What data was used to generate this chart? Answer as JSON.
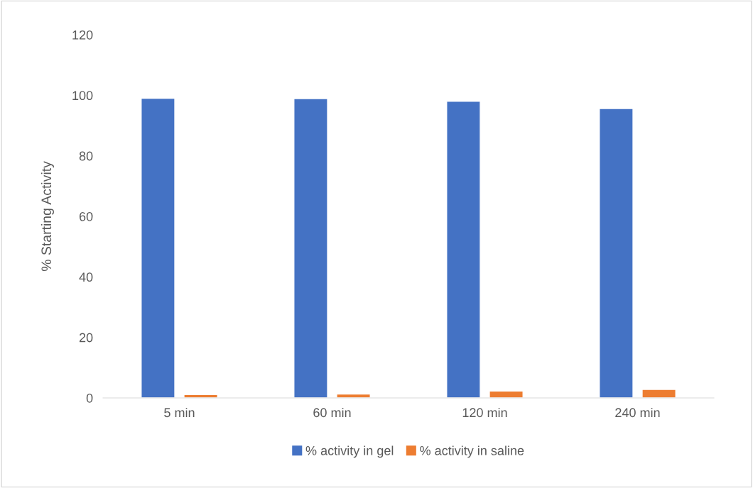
{
  "chart_data": {
    "type": "bar",
    "ylabel": "% Starting Activity",
    "categories": [
      "5 min",
      "60 min",
      "120 min",
      "240 min"
    ],
    "series": [
      {
        "name": "% activity in gel",
        "color": "#4472c4",
        "values": [
          99.0,
          98.9,
          98.0,
          95.6
        ]
      },
      {
        "name": "% activity in saline",
        "color": "#ed7d31",
        "values": [
          1.1,
          1.3,
          2.3,
          2.8
        ]
      }
    ],
    "ylim": [
      0,
      120
    ],
    "yticks": [
      0,
      20,
      40,
      60,
      80,
      100,
      120
    ],
    "grid": false,
    "legend": "bottom"
  }
}
